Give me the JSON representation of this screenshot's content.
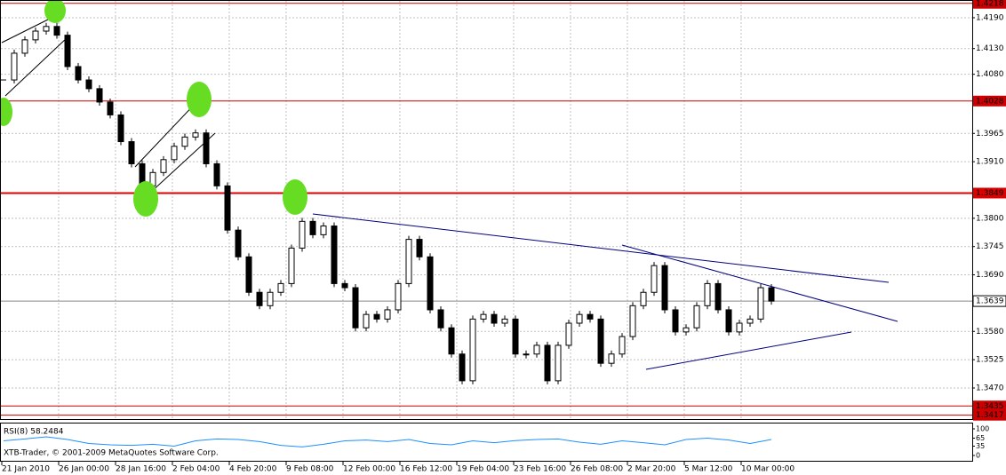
{
  "chart_data": {
    "type": "candlestick",
    "values": [
      1.4069,
      1.4121,
      1.4147,
      1.4164,
      1.4173,
      1.4156,
      1.4095,
      1.4069,
      1.4052,
      1.4026,
      1.4001,
      1.3949,
      1.3906,
      1.3863,
      1.3889,
      1.3914,
      1.394,
      1.3958,
      1.3966,
      1.3906,
      1.3863,
      1.3777,
      1.3725,
      1.3656,
      1.363,
      1.3656,
      1.3673,
      1.3742,
      1.3794,
      1.3768,
      1.3785,
      1.3673,
      1.3665,
      1.3587,
      1.3613,
      1.3604,
      1.3622,
      1.3673,
      1.3759,
      1.3725,
      1.3622,
      1.3587,
      1.3536,
      1.3484,
      1.3604,
      1.3613,
      1.3596,
      1.3604,
      1.3536,
      1.3536,
      1.3553,
      1.3484,
      1.3553,
      1.3596,
      1.3613,
      1.3604,
      1.3518,
      1.3536,
      1.357,
      1.363,
      1.3656,
      1.3708,
      1.3622,
      1.3579,
      1.3587,
      1.363,
      1.3673,
      1.3622,
      1.3579,
      1.3596,
      1.3604,
      1.3665,
      1.3639
    ],
    "ylim": [
      1.3413,
      1.4221
    ],
    "yticks": [
      {
        "value": 1.419,
        "label": "1.4190"
      },
      {
        "value": 1.413,
        "label": "1.4130"
      },
      {
        "value": 1.408,
        "label": "1.4080"
      },
      {
        "value": 1.3965,
        "label": "1.3965"
      },
      {
        "value": 1.391,
        "label": "1.3910"
      },
      {
        "value": 1.38,
        "label": "1.3800"
      },
      {
        "value": 1.3745,
        "label": "1.3745"
      },
      {
        "value": 1.369,
        "label": "1.3690"
      },
      {
        "value": 1.358,
        "label": "1.3580"
      },
      {
        "value": 1.3525,
        "label": "1.3525"
      },
      {
        "value": 1.347,
        "label": "1.3470"
      }
    ],
    "levels": [
      {
        "value": 1.4218,
        "label": "1.4218",
        "color": "#cc0000"
      },
      {
        "value": 1.4028,
        "label": "1.4028",
        "color": "#cc0000"
      },
      {
        "value": 1.3849,
        "label": "1.3849",
        "color": "#dd0000"
      },
      {
        "value": 1.3639,
        "label": "1.3639",
        "color": "#888888"
      },
      {
        "value": 1.3435,
        "label": "1.3435",
        "color": "#cc0000"
      },
      {
        "value": 1.3417,
        "label": "1.3417",
        "color": "#cc0000"
      }
    ],
    "x_labels": [
      "21 Jan 2010",
      "26 Jan 00:00",
      "28 Jan 16:00",
      "2 Feb 04:00",
      "4 Feb 20:00",
      "9 Feb 08:00",
      "12 Feb 00:00",
      "16 Feb 12:00",
      "19 Feb 04:00",
      "23 Feb 16:00",
      "26 Feb 08:00",
      "2 Mar 20:00",
      "5 Mar 12:00",
      "10 Mar 00:00"
    ],
    "grid": true,
    "rsi": {
      "label": "RSI(8) 58.2484",
      "values": [
        55,
        62,
        70,
        60,
        45,
        40,
        38,
        42,
        35,
        55,
        62,
        60,
        52,
        38,
        32,
        42,
        55,
        58,
        52,
        60,
        45,
        40,
        55,
        48,
        56,
        60,
        62,
        50,
        42,
        55,
        48,
        40,
        60,
        65,
        58,
        45,
        60
      ],
      "ylim": [
        0,
        100
      ],
      "yticks": [
        100,
        65,
        35,
        0
      ],
      "color": "#1e90ff"
    },
    "footer": "XTB-Trader, © 2001-2009 MetaQuotes Software Corp."
  }
}
